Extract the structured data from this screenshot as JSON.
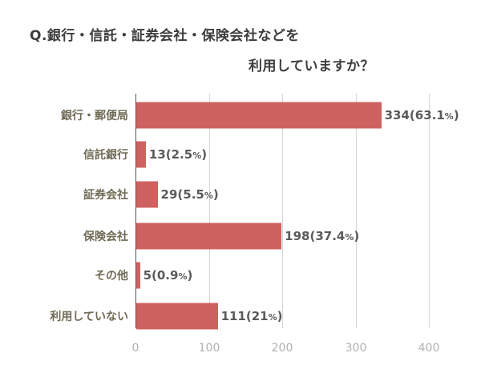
{
  "title": {
    "line1": "Q.銀行・信託・証券会社・保険会社などを",
    "line2": "利用していますか？"
  },
  "colors": {
    "bar": "#cd6260",
    "category_text": "#6e6a55",
    "value_text": "#5a5a5a",
    "tick_text": "#b0b0b0",
    "grid": "#d6d6d6"
  },
  "chart_data": {
    "type": "bar",
    "orientation": "horizontal",
    "title": "Q.銀行・信託・証券会社・保険会社などを利用していますか？",
    "xlabel": "",
    "ylabel": "",
    "xlim": [
      0,
      400
    ],
    "xticks": [
      0,
      100,
      200,
      300,
      400
    ],
    "grid": true,
    "legend": null,
    "categories": [
      "銀行・郵便局",
      "信託銀行",
      "証券会社",
      "保険会社",
      "その他",
      "利用していない"
    ],
    "values": [
      334,
      13,
      29,
      198,
      5,
      111
    ],
    "percentages": [
      63.1,
      2.5,
      5.5,
      37.4,
      0.9,
      21
    ],
    "data_labels": [
      "334(63.1%)",
      "13(2.5%)",
      "29(5.5%)",
      "198(37.4%)",
      "5(0.9%)",
      "111(21%)"
    ]
  },
  "ticks": [
    "0",
    "100",
    "200",
    "300",
    "400"
  ],
  "rows": [
    {
      "label": "銀行・郵便局",
      "value": "334",
      "pct": "(63.1",
      "pct_sign": "%",
      "close": ")"
    },
    {
      "label": "信託銀行",
      "value": "13",
      "pct": "(2.5",
      "pct_sign": "%",
      "close": ")"
    },
    {
      "label": "証券会社",
      "value": "29",
      "pct": "(5.5",
      "pct_sign": "%",
      "close": ")"
    },
    {
      "label": "保険会社",
      "value": "198",
      "pct": "(37.4",
      "pct_sign": "%",
      "close": ")"
    },
    {
      "label": "その他",
      "value": "5",
      "pct": "(0.9",
      "pct_sign": "%",
      "close": ")"
    },
    {
      "label": "利用していない",
      "value": "111",
      "pct": "(21",
      "pct_sign": "%",
      "close": ")"
    }
  ]
}
